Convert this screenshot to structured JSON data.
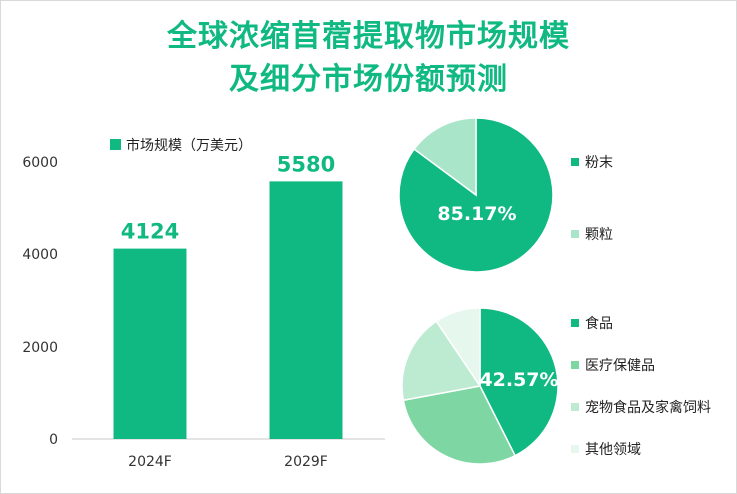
{
  "header": {
    "title_line1": "全球浓缩苜蓿提取物市场规模",
    "title_line2": "及细分市场份额预测"
  },
  "colors": {
    "accent": "#10b981",
    "bar": "#10b981",
    "pie1": [
      "#10b981",
      "#a9e5c8"
    ],
    "pie2": [
      "#10b981",
      "#7ed6a3",
      "#bdebd2",
      "#e6f7ee"
    ]
  },
  "chart_data": [
    {
      "type": "bar",
      "legend": "市场规模（万美元）",
      "legend_position": "top-left",
      "categories": [
        "2024F",
        "2029F"
      ],
      "values": [
        4124,
        5580
      ],
      "data_labels": [
        "4124",
        "5580"
      ],
      "ylim": [
        0,
        6000
      ],
      "yticks": [
        "0",
        "2000",
        "4000",
        "6000"
      ],
      "grid": false
    },
    {
      "type": "pie",
      "labels": [
        "粉末",
        "颗粒"
      ],
      "values": [
        85.17,
        14.83
      ],
      "shown_label": "85.17%",
      "legend_position": "right"
    },
    {
      "type": "pie",
      "labels": [
        "食品",
        "医疗保健品",
        "宠物食品及家禽饲料",
        "其他领域"
      ],
      "values": [
        42.57,
        29.5,
        18.5,
        9.43
      ],
      "shown_label": "42.57%",
      "legend_position": "right"
    }
  ]
}
